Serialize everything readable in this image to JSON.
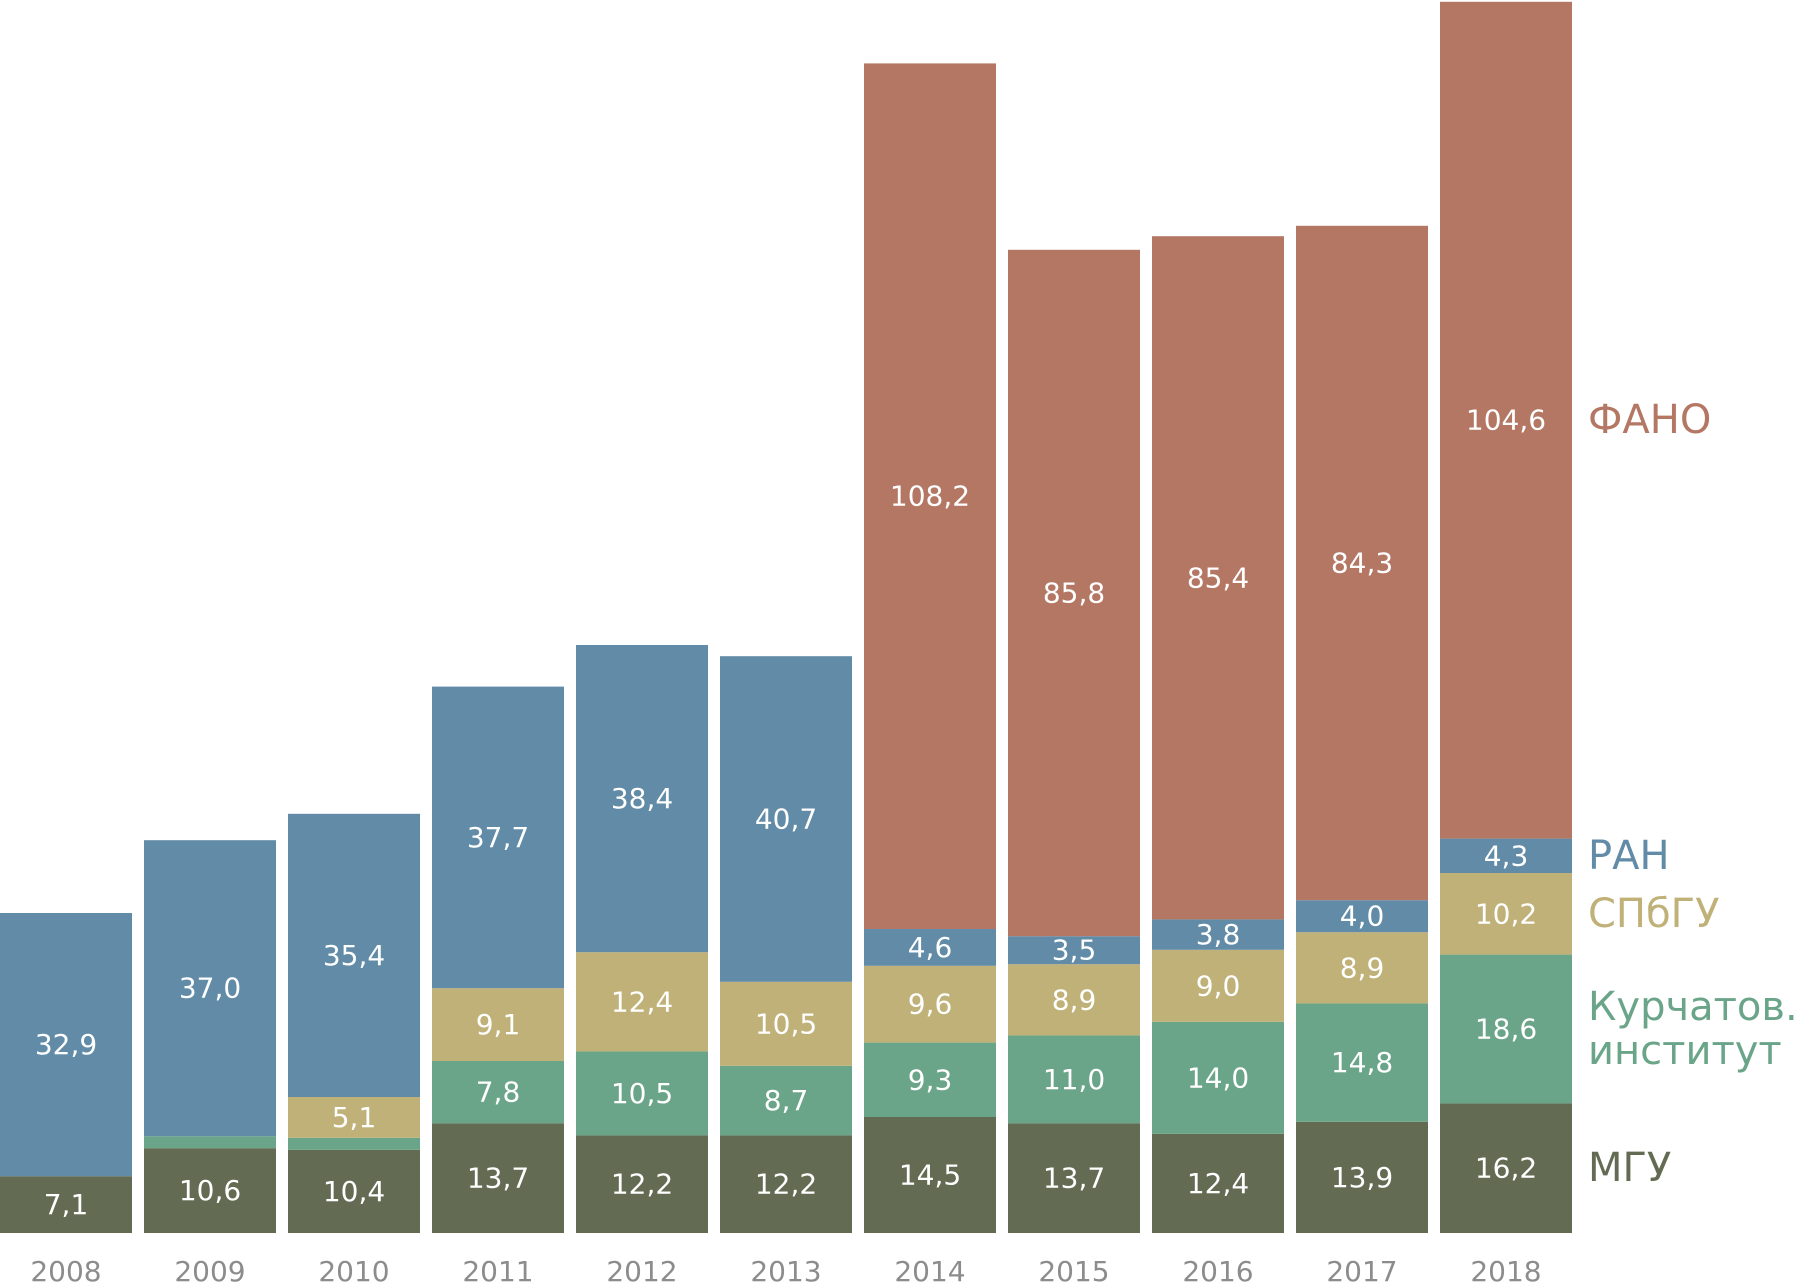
{
  "chart_data": {
    "type": "bar",
    "stacked": true,
    "title": "",
    "xlabel": "",
    "ylabel": "",
    "categories": [
      "2008",
      "2009",
      "2010",
      "2011",
      "2012",
      "2013",
      "2014",
      "2015",
      "2016",
      "2017",
      "2018"
    ],
    "ylim": [
      0,
      154
    ],
    "grid": false,
    "legend_position": "right (inline, aligned to last bar)",
    "decimal_separator": ",",
    "series": [
      {
        "name": "МГУ",
        "color": "#636b53",
        "values": [
          7.1,
          10.6,
          10.4,
          13.7,
          12.2,
          12.2,
          14.5,
          13.7,
          12.4,
          13.9,
          16.2
        ],
        "labels": [
          "7,1",
          "10,6",
          "10,4",
          "13,7",
          "12,2",
          "12,2",
          "14,5",
          "13,7",
          "12,4",
          "13,9",
          "16,2"
        ]
      },
      {
        "name": "Курчатов. институт",
        "legend_lines": [
          "Курчатов.",
          "институт"
        ],
        "color": "#6ba589",
        "values": [
          0,
          1.5,
          1.5,
          7.8,
          10.5,
          8.7,
          9.3,
          11.0,
          14.0,
          14.8,
          18.6
        ],
        "labels": [
          "",
          "",
          "",
          "7,8",
          "10,5",
          "8,7",
          "9,3",
          "11,0",
          "14,0",
          "14,8",
          "18,6"
        ]
      },
      {
        "name": "СПбГУ",
        "color": "#bfb177",
        "values": [
          0,
          0,
          5.1,
          9.1,
          12.4,
          10.5,
          9.6,
          8.9,
          9.0,
          8.9,
          10.2
        ],
        "labels": [
          "",
          "",
          "5,1",
          "9,1",
          "12,4",
          "10,5",
          "9,6",
          "8,9",
          "9,0",
          "8,9",
          "10,2"
        ]
      },
      {
        "name": "РАН",
        "color": "#618ba7",
        "values": [
          32.9,
          37.0,
          35.4,
          37.7,
          38.4,
          40.7,
          4.6,
          3.5,
          3.8,
          4.0,
          4.3
        ],
        "labels": [
          "32,9",
          "37,0",
          "35,4",
          "37,7",
          "38,4",
          "40,7",
          "4,6",
          "3,5",
          "3,8",
          "4,0",
          "4,3"
        ]
      },
      {
        "name": "ФАНО",
        "color": "#b37764",
        "values": [
          0,
          0,
          0,
          0,
          0,
          0,
          108.2,
          85.8,
          85.4,
          84.3,
          104.6
        ],
        "labels": [
          "",
          "",
          "",
          "",
          "",
          "",
          "108,2",
          "85,8",
          "85,4",
          "84,3",
          "104,6"
        ]
      }
    ],
    "year_label_color": "#8c8c8c",
    "value_label_color": "#ffffff"
  }
}
